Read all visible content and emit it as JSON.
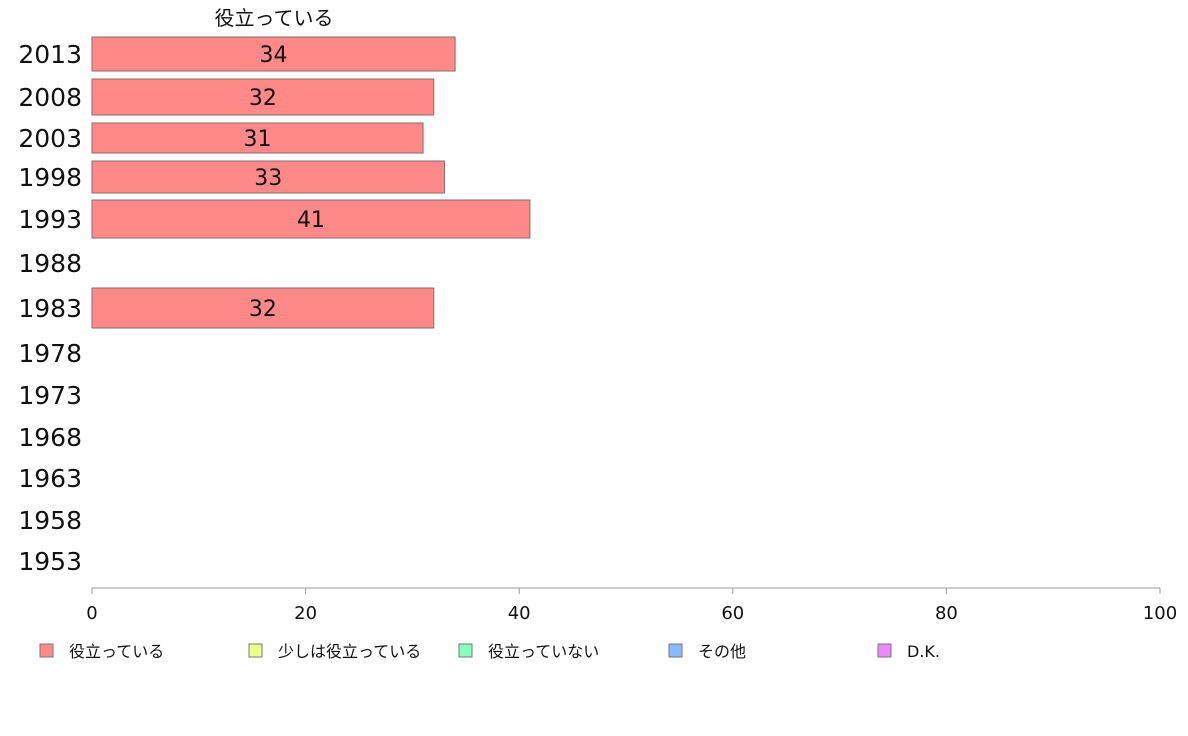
{
  "colors": {
    "axis": "#999999",
    "bar_stroke": "#8a6a6a"
  },
  "chart_data": {
    "type": "bar",
    "orientation": "horizontal",
    "title": "役立っている",
    "categories": [
      "2013",
      "2008",
      "2003",
      "1998",
      "1993",
      "1988",
      "1983",
      "1978",
      "1973",
      "1968",
      "1963",
      "1958",
      "1953"
    ],
    "series": [
      {
        "name": "役立っている",
        "color": "#ff8888",
        "values": [
          34,
          32,
          31,
          33,
          41,
          null,
          32,
          null,
          null,
          null,
          null,
          null,
          null
        ]
      }
    ],
    "xlim": [
      0,
      100
    ],
    "xticks": [
      0,
      20,
      40,
      60,
      80,
      100
    ],
    "grid": false,
    "legend": {
      "position": "bottom",
      "items": [
        {
          "label": "役立っている",
          "color": "#ff8888"
        },
        {
          "label": "少しは役立っている",
          "color": "#eeff88"
        },
        {
          "label": "役立っていない",
          "color": "#88ffbb"
        },
        {
          "label": "その他",
          "color": "#88bbff"
        },
        {
          "label": "D.K.",
          "color": "#ee88ff"
        }
      ]
    }
  }
}
